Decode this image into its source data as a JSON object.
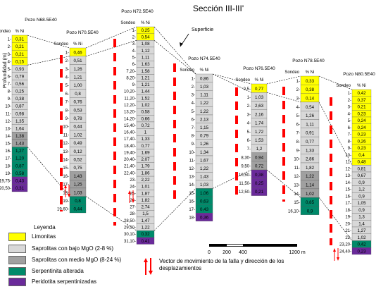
{
  "title": "Sección III-III'",
  "labels": {
    "depth_axis": "Profundidad (m)",
    "sondeo": "Sondeo",
    "ni": "% Ni",
    "superficie": "Superficie"
  },
  "colors": {
    "limonitas": "#ffff00",
    "saprolitas_bajo": "#d8d8d8",
    "saprolitas_medio": "#a0a0a0",
    "serpentinita": "#008a6a",
    "peridotita": "#6a2a9a",
    "fault": "#ff0000"
  },
  "wells": [
    {
      "name": "Pozo N68.5E40",
      "samples": [
        {
          "d": "1",
          "v": "0,31",
          "u": "limonitas"
        },
        {
          "d": "2",
          "v": "0,21",
          "u": "limonitas"
        },
        {
          "d": "3",
          "v": "0,21",
          "u": "limonitas"
        },
        {
          "d": "4",
          "v": "0,15",
          "u": "limonitas"
        },
        {
          "d": "5",
          "v": "0,93",
          "u": "saprolitas_bajo"
        },
        {
          "d": "6",
          "v": "0,79",
          "u": "saprolitas_bajo"
        },
        {
          "d": "7",
          "v": "0,56",
          "u": "saprolitas_bajo"
        },
        {
          "d": "8",
          "v": "0,25",
          "u": "saprolitas_bajo"
        },
        {
          "d": "9",
          "v": "0,38",
          "u": "saprolitas_bajo"
        },
        {
          "d": "10",
          "v": "0,87",
          "u": "saprolitas_bajo"
        },
        {
          "d": "11",
          "v": "0,98",
          "u": "saprolitas_bajo"
        },
        {
          "d": "12",
          "v": "1,35",
          "u": "saprolitas_bajo"
        },
        {
          "d": "13",
          "v": "1,64",
          "u": "saprolitas_bajo"
        },
        {
          "d": "14",
          "v": "1,38",
          "u": "saprolitas_medio"
        },
        {
          "d": "15",
          "v": "1,43",
          "u": "saprolitas_medio"
        },
        {
          "d": "16",
          "v": "1,27",
          "u": "serpentinita"
        },
        {
          "d": "17",
          "v": "1,20",
          "u": "serpentinita"
        },
        {
          "d": "18",
          "v": "0,87",
          "u": "serpentinita"
        },
        {
          "d": "19",
          "v": "0,58",
          "u": "serpentinita"
        },
        {
          "d": "19,75",
          "v": "0,43",
          "u": "peridotita"
        },
        {
          "d": "20,50",
          "v": "0,31",
          "u": "peridotita"
        }
      ]
    },
    {
      "name": "Pozo N70.5E40",
      "samples": [
        {
          "d": "1",
          "v": "0,46",
          "u": "limonitas"
        },
        {
          "d": "2",
          "v": "0,51",
          "u": "saprolitas_bajo"
        },
        {
          "d": "3",
          "v": "1,26",
          "u": "saprolitas_bajo"
        },
        {
          "d": "4",
          "v": "1,21",
          "u": "saprolitas_bajo"
        },
        {
          "d": "5",
          "v": "1,00",
          "u": "saprolitas_bajo"
        },
        {
          "d": "6",
          "v": "0,8",
          "u": "saprolitas_bajo"
        },
        {
          "d": "7",
          "v": "0,76",
          "u": "saprolitas_bajo"
        },
        {
          "d": "8",
          "v": "0,53",
          "u": "saprolitas_bajo"
        },
        {
          "d": "9",
          "v": "0,78",
          "u": "saprolitas_bajo"
        },
        {
          "d": "10",
          "v": "0,44",
          "u": "saprolitas_bajo"
        },
        {
          "d": "11",
          "v": "1,02",
          "u": "saprolitas_bajo"
        },
        {
          "d": "12",
          "v": "0,49",
          "u": "saprolitas_bajo"
        },
        {
          "d": "13",
          "v": "0,12",
          "u": "saprolitas_bajo"
        },
        {
          "d": "14",
          "v": "0,52",
          "u": "saprolitas_bajo"
        },
        {
          "d": "15",
          "v": "0,75",
          "u": "saprolitas_bajo"
        },
        {
          "d": "16",
          "v": "1,43",
          "u": "saprolitas_medio"
        },
        {
          "d": "17",
          "v": "1,25",
          "u": "saprolitas_medio"
        },
        {
          "d": "18",
          "v": "1,03",
          "u": "saprolitas_medio"
        },
        {
          "d": "19",
          "v": "0,8",
          "u": "serpentinita"
        },
        {
          "d": "19,60",
          "v": "0,44",
          "u": "serpentinita"
        }
      ]
    },
    {
      "name": "Pozo N72.5E40",
      "samples": [
        {
          "d": "1",
          "v": "0,25",
          "u": "limonitas"
        },
        {
          "d": "2",
          "v": "0,54",
          "u": "limonitas"
        },
        {
          "d": "3",
          "v": "1,08",
          "u": "saprolitas_bajo"
        },
        {
          "d": "4",
          "v": "1,12",
          "u": "saprolitas_bajo"
        },
        {
          "d": "5",
          "v": "1,11",
          "u": "saprolitas_bajo"
        },
        {
          "d": "6",
          "v": "1,63",
          "u": "saprolitas_bajo"
        },
        {
          "d": "7,20",
          "v": "1,58",
          "u": "saprolitas_bajo"
        },
        {
          "d": "8,20",
          "v": "1,21",
          "u": "saprolitas_bajo"
        },
        {
          "d": "9",
          "v": "1,21",
          "u": "saprolitas_bajo"
        },
        {
          "d": "10,20",
          "v": "1,44",
          "u": "saprolitas_bajo"
        },
        {
          "d": "11,20",
          "v": "1,52",
          "u": "saprolitas_bajo"
        },
        {
          "d": "12,20",
          "v": "1,02",
          "u": "saprolitas_bajo"
        },
        {
          "d": "13,20",
          "v": "0,58",
          "u": "saprolitas_bajo"
        },
        {
          "d": "14,20",
          "v": "0,66",
          "u": "saprolitas_bajo"
        },
        {
          "d": "15,40",
          "v": "0,72",
          "u": "saprolitas_bajo"
        },
        {
          "d": "16,40",
          "v": "1",
          "u": "saprolitas_bajo"
        },
        {
          "d": "17,40",
          "v": "1,33",
          "u": "saprolitas_bajo"
        },
        {
          "d": "18,40",
          "v": "0,77",
          "u": "saprolitas_bajo"
        },
        {
          "d": "19,40",
          "v": "1,69",
          "u": "saprolitas_bajo"
        },
        {
          "d": "20,40",
          "v": "2,07",
          "u": "saprolitas_bajo"
        },
        {
          "d": "21,40",
          "v": "1,79",
          "u": "saprolitas_bajo"
        },
        {
          "d": "22,40",
          "v": "1,86",
          "u": "saprolitas_bajo"
        },
        {
          "d": "23",
          "v": "2,22",
          "u": "saprolitas_bajo"
        },
        {
          "d": "24",
          "v": "1,01",
          "u": "saprolitas_bajo"
        },
        {
          "d": "25",
          "v": "1,87",
          "u": "saprolitas_bajo"
        },
        {
          "d": "26",
          "v": "1,82",
          "u": "saprolitas_bajo"
        },
        {
          "d": "27",
          "v": "2,74",
          "u": "saprolitas_bajo"
        },
        {
          "d": "28",
          "v": "1,5",
          "u": "saprolitas_bajo"
        },
        {
          "d": "28,50",
          "v": "1,47",
          "u": "saprolitas_bajo"
        },
        {
          "d": "29,50",
          "v": "1,22",
          "u": "saprolitas_bajo"
        },
        {
          "d": "30,10",
          "v": "0,32",
          "u": "serpentinita"
        },
        {
          "d": "31,10",
          "v": "0,41",
          "u": "peridotita"
        }
      ]
    },
    {
      "name": "Pozo N74.5E40",
      "samples": [
        {
          "d": "1",
          "v": "0,86",
          "u": "saprolitas_bajo"
        },
        {
          "d": "2",
          "v": "1,03",
          "u": "saprolitas_bajo"
        },
        {
          "d": "3",
          "v": "1,11",
          "u": "saprolitas_bajo"
        },
        {
          "d": "4",
          "v": "1,22",
          "u": "saprolitas_bajo"
        },
        {
          "d": "5",
          "v": "1,22",
          "u": "saprolitas_bajo"
        },
        {
          "d": "6",
          "v": "2,13",
          "u": "saprolitas_bajo"
        },
        {
          "d": "7",
          "v": "1,15",
          "u": "saprolitas_bajo"
        },
        {
          "d": "8",
          "v": "0,79",
          "u": "saprolitas_bajo"
        },
        {
          "d": "9",
          "v": "1,26",
          "u": "saprolitas_bajo"
        },
        {
          "d": "10",
          "v": "1,34",
          "u": "saprolitas_bajo"
        },
        {
          "d": "11",
          "v": "1,67",
          "u": "saprolitas_bajo"
        },
        {
          "d": "12",
          "v": "1,22",
          "u": "saprolitas_bajo"
        },
        {
          "d": "13",
          "v": "1,43",
          "u": "saprolitas_bajo"
        },
        {
          "d": "14",
          "v": "1,03",
          "u": "saprolitas_bajo"
        },
        {
          "d": "15",
          "v": "1,06",
          "u": "serpentinita"
        },
        {
          "d": "16",
          "v": "0,63",
          "u": "serpentinita"
        },
        {
          "d": "17",
          "v": "0,43",
          "u": "serpentinita"
        },
        {
          "d": "18",
          "v": "0,36",
          "u": "peridotita"
        }
      ]
    },
    {
      "name": "Pozo N76.5E40",
      "samples": [
        {
          "d": "0,5",
          "v": "0,77",
          "u": "limonitas"
        },
        {
          "d": "1",
          "v": "1,03",
          "u": "saprolitas_bajo"
        },
        {
          "d": "2",
          "v": "2,63",
          "u": "saprolitas_bajo"
        },
        {
          "d": "3",
          "v": "2,16",
          "u": "saprolitas_bajo"
        },
        {
          "d": "4",
          "v": "1,74",
          "u": "saprolitas_bajo"
        },
        {
          "d": "5",
          "v": "1,72",
          "u": "saprolitas_bajo"
        },
        {
          "d": "6",
          "v": "1,53",
          "u": "saprolitas_bajo"
        },
        {
          "d": "7",
          "v": "1,2",
          "u": "saprolitas_bajo"
        },
        {
          "d": "8,30",
          "v": "0,94",
          "u": "saprolitas_medio"
        },
        {
          "d": "9,50",
          "v": "0,72",
          "u": "saprolitas_medio"
        },
        {
          "d": "10,50",
          "v": "0,38",
          "u": "peridotita"
        },
        {
          "d": "11,50",
          "v": "0,25",
          "u": "peridotita"
        },
        {
          "d": "12,50",
          "v": "0,21",
          "u": "peridotita"
        }
      ]
    },
    {
      "name": "Pozo N78.5E40",
      "samples": [
        {
          "d": "1",
          "v": "0,33",
          "u": "limonitas"
        },
        {
          "d": "2",
          "v": "0,38",
          "u": "limonitas"
        },
        {
          "d": "3",
          "v": "0,14",
          "u": "limonitas"
        },
        {
          "d": "4",
          "v": "0,54",
          "u": "saprolitas_bajo"
        },
        {
          "d": "5",
          "v": "1,26",
          "u": "saprolitas_bajo"
        },
        {
          "d": "6",
          "v": "1,11",
          "u": "saprolitas_bajo"
        },
        {
          "d": "7",
          "v": "0,91",
          "u": "saprolitas_bajo"
        },
        {
          "d": "8",
          "v": "0,77",
          "u": "saprolitas_bajo"
        },
        {
          "d": "9",
          "v": "1,33",
          "u": "saprolitas_bajo"
        },
        {
          "d": "10",
          "v": "2,86",
          "u": "saprolitas_bajo"
        },
        {
          "d": "11",
          "v": "1,82",
          "u": "saprolitas_bajo"
        },
        {
          "d": "12",
          "v": "1,22",
          "u": "saprolitas_medio"
        },
        {
          "d": "13",
          "v": "1,14",
          "u": "saprolitas_medio"
        },
        {
          "d": "14",
          "v": "1,02",
          "u": "saprolitas_medio"
        },
        {
          "d": "15",
          "v": "0,85",
          "u": "serpentinita"
        },
        {
          "d": "16,10",
          "v": "0,9",
          "u": "serpentinita"
        }
      ]
    },
    {
      "name": "Pozo N80.5E40",
      "samples": [
        {
          "d": "1",
          "v": "0,42",
          "u": "limonitas"
        },
        {
          "d": "2",
          "v": "0,37",
          "u": "limonitas"
        },
        {
          "d": "3",
          "v": "0,21",
          "u": "limonitas"
        },
        {
          "d": "4",
          "v": "0,23",
          "u": "limonitas"
        },
        {
          "d": "5",
          "v": "0,24",
          "u": "limonitas"
        },
        {
          "d": "6",
          "v": "0,24",
          "u": "limonitas"
        },
        {
          "d": "7",
          "v": "0,23",
          "u": "limonitas"
        },
        {
          "d": "8",
          "v": "0,26",
          "u": "limonitas"
        },
        {
          "d": "9",
          "v": "0,23",
          "u": "limonitas"
        },
        {
          "d": "10",
          "v": "0,4",
          "u": "limonitas"
        },
        {
          "d": "11",
          "v": "0,48",
          "u": "limonitas"
        },
        {
          "d": "12",
          "v": "0,81",
          "u": "saprolitas_bajo"
        },
        {
          "d": "13",
          "v": "0,67",
          "u": "saprolitas_bajo"
        },
        {
          "d": "14",
          "v": "0,9",
          "u": "saprolitas_bajo"
        },
        {
          "d": "15",
          "v": "1,2",
          "u": "saprolitas_bajo"
        },
        {
          "d": "16",
          "v": "0,9",
          "u": "saprolitas_bajo"
        },
        {
          "d": "17",
          "v": "1,05",
          "u": "saprolitas_bajo"
        },
        {
          "d": "18",
          "v": "0,9",
          "u": "saprolitas_bajo"
        },
        {
          "d": "19",
          "v": "1,3",
          "u": "saprolitas_bajo"
        },
        {
          "d": "20",
          "v": "1,4",
          "u": "saprolitas_bajo"
        },
        {
          "d": "21",
          "v": "1,27",
          "u": "saprolitas_bajo"
        },
        {
          "d": "22",
          "v": "1,02",
          "u": "saprolitas_bajo"
        },
        {
          "d": "23,20",
          "v": "0,42",
          "u": "serpentinita"
        },
        {
          "d": "24,40",
          "v": "0,23",
          "u": "peridotita"
        }
      ]
    }
  ],
  "scale": {
    "labels": [
      "0",
      "200",
      "400",
      "1200 m"
    ]
  },
  "legend": {
    "title": "Leyenda",
    "items": [
      {
        "key": "limonitas",
        "label": "Limonitas"
      },
      {
        "key": "saprolitas_bajo",
        "label": "Saprolitas con bajo MgO (2-8 %)"
      },
      {
        "key": "saprolitas_medio",
        "label": "Saprolitas con medio MgO (8-24 %)"
      },
      {
        "key": "serpentinita",
        "label": "Serpentinita alterada"
      },
      {
        "key": "peridotita",
        "label": "Peridotita serpentinizadas"
      }
    ],
    "fault_text": "Vector de movimiento de la falla y dirección de los desplazamientos"
  }
}
